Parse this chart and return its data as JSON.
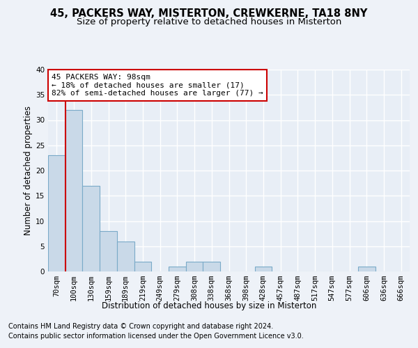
{
  "title1": "45, PACKERS WAY, MISTERTON, CREWKERNE, TA18 8NY",
  "title2": "Size of property relative to detached houses in Misterton",
  "xlabel": "Distribution of detached houses by size in Misterton",
  "ylabel": "Number of detached properties",
  "bar_labels": [
    "70sqm",
    "100sqm",
    "130sqm",
    "159sqm",
    "189sqm",
    "219sqm",
    "249sqm",
    "279sqm",
    "308sqm",
    "338sqm",
    "368sqm",
    "398sqm",
    "428sqm",
    "457sqm",
    "487sqm",
    "517sqm",
    "547sqm",
    "577sqm",
    "606sqm",
    "636sqm",
    "666sqm"
  ],
  "bar_values": [
    23,
    32,
    17,
    8,
    6,
    2,
    0,
    1,
    2,
    2,
    0,
    0,
    1,
    0,
    0,
    0,
    0,
    0,
    1,
    0,
    0
  ],
  "bar_color": "#c9d9e8",
  "bar_edgecolor": "#7aaac8",
  "annotation_title": "45 PACKERS WAY: 98sqm",
  "annotation_line1": "← 18% of detached houses are smaller (17)",
  "annotation_line2": "82% of semi-detached houses are larger (77) →",
  "annotation_box_color": "#ffffff",
  "annotation_box_edgecolor": "#cc0000",
  "red_line_color": "#cc0000",
  "ylim": [
    0,
    40
  ],
  "yticks": [
    0,
    5,
    10,
    15,
    20,
    25,
    30,
    35,
    40
  ],
  "footer_line1": "Contains HM Land Registry data © Crown copyright and database right 2024.",
  "footer_line2": "Contains public sector information licensed under the Open Government Licence v3.0.",
  "bg_color": "#eef2f8",
  "plot_bg_color": "#e8eef6",
  "grid_color": "#ffffff",
  "title1_fontsize": 10.5,
  "title2_fontsize": 9.5,
  "axis_label_fontsize": 8.5,
  "tick_fontsize": 7.5,
  "annotation_fontsize": 8,
  "footer_fontsize": 7
}
